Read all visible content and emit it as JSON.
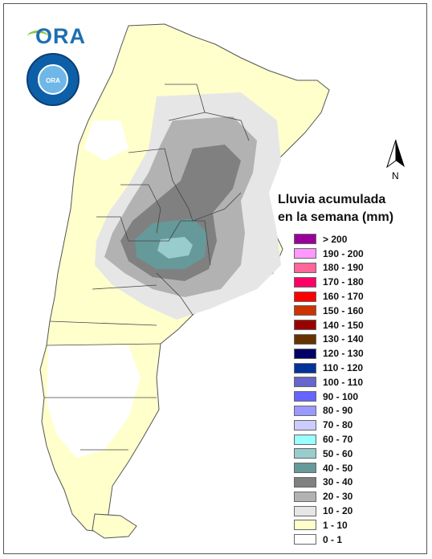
{
  "logo": {
    "text": "ORA",
    "seal_text": "ORA"
  },
  "north_arrow": {
    "label": "N"
  },
  "legend": {
    "title_line1": "Lluvia acumulada",
    "title_line2": "en la semana (mm)",
    "items": [
      {
        "label": "> 200",
        "color": "#990099"
      },
      {
        "label": "190 - 200",
        "color": "#ff99ff"
      },
      {
        "label": "180 - 190",
        "color": "#ff6699"
      },
      {
        "label": "170 - 180",
        "color": "#ff0066"
      },
      {
        "label": "160 - 170",
        "color": "#ff0000"
      },
      {
        "label": "150 - 160",
        "color": "#cc3300"
      },
      {
        "label": "140 - 150",
        "color": "#990000"
      },
      {
        "label": "130 - 140",
        "color": "#663300"
      },
      {
        "label": "120 - 130",
        "color": "#000066"
      },
      {
        "label": "110 - 120",
        "color": "#003399"
      },
      {
        "label": "100 - 110",
        "color": "#6666cc"
      },
      {
        "label": "90 - 100",
        "color": "#6666ff"
      },
      {
        "label": "80 - 90",
        "color": "#9999ff"
      },
      {
        "label": "70 - 80",
        "color": "#ccccff"
      },
      {
        "label": "60 - 70",
        "color": "#99ffff"
      },
      {
        "label": "50 - 60",
        "color": "#99cccc"
      },
      {
        "label": "40 - 50",
        "color": "#669999"
      },
      {
        "label": "30 - 40",
        "color": "#808080"
      },
      {
        "label": "20 - 30",
        "color": "#b2b2b2"
      },
      {
        "label": "10 - 20",
        "color": "#e6e6e6"
      },
      {
        "label": "1 - 10",
        "color": "#ffffcc"
      },
      {
        "label": "0 - 1",
        "color": "#ffffff"
      }
    ]
  }
}
